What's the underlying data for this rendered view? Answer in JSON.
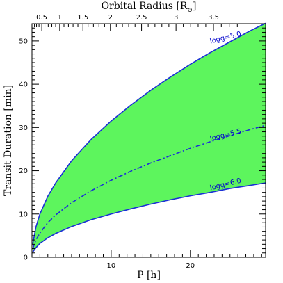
{
  "chart_data": {
    "type": "area",
    "title": "",
    "xlabel": "P [h]",
    "ylabel": "Transit Duration [min]",
    "top_axis_label": "Orbital Radius [R",
    "top_axis_label_sub": "⊙",
    "top_axis_label_close": "]",
    "xlim": [
      0,
      29.5
    ],
    "ylim": [
      0,
      54
    ],
    "x_ticks": [
      10,
      20
    ],
    "y_ticks": [
      0,
      10,
      20,
      30,
      40,
      50
    ],
    "top_ticks": [
      0.5,
      1,
      1.5,
      2,
      2.5,
      3,
      3.5
    ],
    "x_tick_labels": [
      "10",
      "20"
    ],
    "y_tick_labels": [
      "0",
      "10",
      "20",
      "30",
      "40",
      "50"
    ],
    "top_tick_labels": [
      "0.5",
      "1",
      "1.5",
      "2",
      "2.5",
      "3",
      "3.5"
    ],
    "fill_color": "#5df55d",
    "line_color": "#1a2fd6",
    "series": [
      {
        "name": "logg=5.0",
        "style": "solid",
        "x": [
          0.1,
          0.5,
          1,
          2,
          3,
          5,
          7.5,
          10,
          12.5,
          15,
          17.5,
          20,
          22.5,
          25,
          27.5,
          29.5
        ],
        "y": [
          3.1,
          7.0,
          10.0,
          14.1,
          17.2,
          22.3,
          27.3,
          31.5,
          35.2,
          38.6,
          41.7,
          44.6,
          47.3,
          49.8,
          52.3,
          54.1
        ]
      },
      {
        "name": "logg=5.5",
        "style": "dashdot",
        "x": [
          0.1,
          0.5,
          1,
          2,
          3,
          5,
          7.5,
          10,
          12.5,
          15,
          17.5,
          20,
          22.5,
          25,
          27.5,
          29.5
        ],
        "y": [
          2.0,
          4.0,
          5.6,
          8.0,
          9.8,
          12.6,
          15.4,
          17.8,
          19.9,
          21.8,
          23.5,
          25.2,
          26.7,
          28.1,
          29.5,
          30.5
        ]
      },
      {
        "name": "logg=6.0",
        "style": "solid",
        "x": [
          0.1,
          0.5,
          1,
          2,
          3,
          5,
          7.5,
          10,
          12.5,
          15,
          17.5,
          20,
          22.5,
          25,
          27.5,
          29.5
        ],
        "y": [
          1.2,
          2.2,
          3.2,
          4.5,
          5.5,
          7.1,
          8.7,
          10.0,
          11.2,
          12.3,
          13.3,
          14.2,
          15.0,
          15.9,
          16.6,
          17.2
        ]
      }
    ],
    "curve_labels": [
      {
        "text": "logg=5.0",
        "x": 24.5,
        "y": 50.3
      },
      {
        "text": "logg=5.5",
        "x": 24.5,
        "y": 27.8
      },
      {
        "text": "logg=6.0",
        "x": 24.5,
        "y": 16.4
      }
    ]
  }
}
